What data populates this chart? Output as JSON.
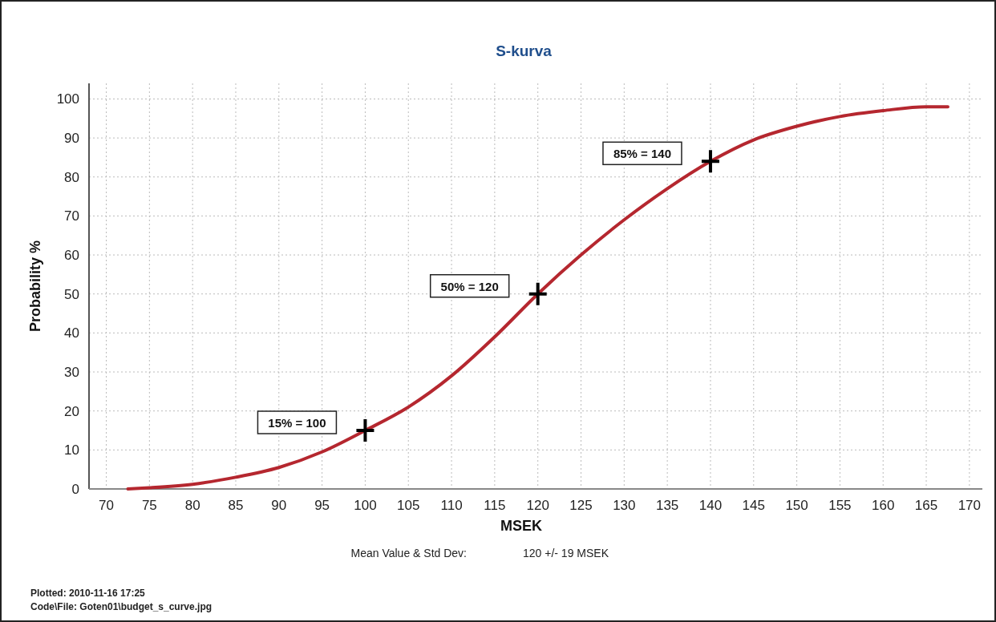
{
  "chart_data": {
    "type": "line",
    "title": "S-kurva",
    "xlabel": "MSEK",
    "ylabel": "Probability %",
    "xlim": [
      68,
      171.5
    ],
    "ylim": [
      0,
      104
    ],
    "xticks": [
      70,
      75,
      80,
      85,
      90,
      95,
      100,
      105,
      110,
      115,
      120,
      125,
      130,
      135,
      140,
      145,
      150,
      155,
      160,
      165,
      170
    ],
    "yticks": [
      0,
      10,
      20,
      30,
      40,
      50,
      60,
      70,
      80,
      90,
      100
    ],
    "grid": true,
    "line_style": "solid",
    "series": [
      {
        "color": "#b5272f",
        "marker": "none",
        "x": [
          72.5,
          75,
          80,
          85,
          90,
          95,
          100,
          105,
          110,
          115,
          120,
          125,
          130,
          135,
          140,
          145,
          150,
          155,
          160,
          165,
          167.5
        ],
        "values": [
          0,
          0.3,
          1.2,
          3,
          5.5,
          9.5,
          15,
          21,
          29,
          39,
          50,
          60,
          69,
          77,
          84,
          89.5,
          93,
          95.5,
          97,
          98,
          98
        ]
      },
      {
        "type": "scatter",
        "color": "#000000",
        "marker": "cross",
        "x": [
          100,
          120,
          140
        ],
        "values": [
          15,
          50,
          84
        ]
      }
    ],
    "annotations": [
      "15% = 100",
      "50% = 120",
      "85% = 140",
      "Mean Value & Std Dev:",
      "120 +/- 19 MSEK",
      "Plotted: 2010-11-16 17:25",
      "Code\\File: Goten01\\budget_s_curve.jpg"
    ]
  }
}
